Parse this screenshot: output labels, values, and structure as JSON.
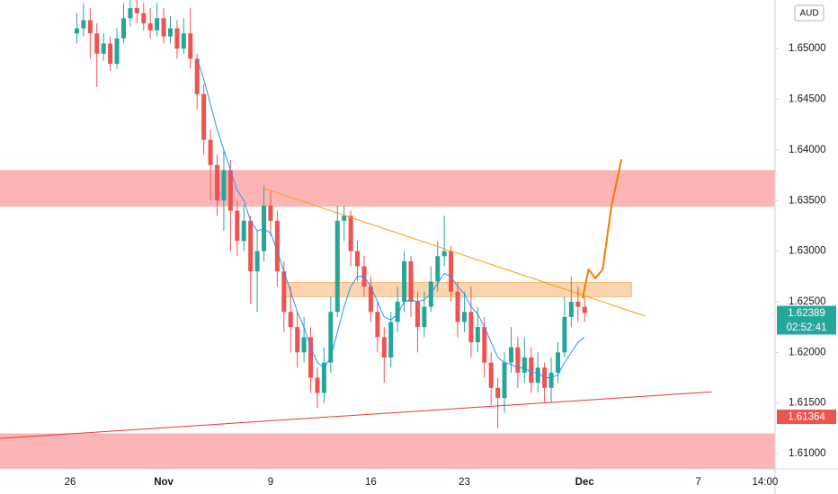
{
  "chart_data": {
    "type": "candlestick",
    "currency": "AUD",
    "categories": [
      null,
      null,
      null,
      null,
      null,
      null,
      null,
      null,
      null,
      null,
      "26",
      null,
      null,
      null,
      null,
      null,
      null,
      null,
      null,
      null,
      null,
      null,
      null,
      null,
      "Nov",
      null,
      null,
      null,
      null,
      null,
      null,
      null,
      null,
      null,
      null,
      null,
      null,
      null,
      null,
      null,
      "9",
      null,
      null,
      null,
      null,
      null,
      null,
      null,
      null,
      null,
      null,
      null,
      null,
      null,
      null,
      "16",
      null,
      null,
      null,
      null,
      null,
      null,
      null,
      null,
      null,
      null,
      null,
      null,
      null,
      "23",
      null,
      null,
      null,
      null,
      null,
      null,
      null,
      null,
      null,
      null,
      null,
      null,
      null,
      null,
      null,
      null,
      null,
      "Dec",
      null,
      null,
      null,
      null,
      null,
      null,
      null,
      null,
      null,
      null,
      null,
      null,
      null,
      null,
      null,
      null,
      "7",
      null,
      null,
      null,
      null,
      null,
      null,
      null,
      null,
      null,
      "14:00",
      null
    ],
    "open": [
      null,
      null,
      null,
      null,
      null,
      null,
      null,
      null,
      null,
      null,
      null,
      1.6515,
      1.652,
      1.6528,
      1.6515,
      1.6495,
      1.6505,
      1.6485,
      1.651,
      1.653,
      1.654,
      1.6535,
      1.6525,
      1.6518,
      1.653,
      1.6512,
      1.652,
      1.65,
      1.6515,
      1.649,
      1.6455,
      1.641,
      1.6385,
      1.635,
      1.638,
      1.634,
      1.631,
      1.633,
      1.628,
      1.63,
      1.6345,
      1.633,
      1.628,
      1.624,
      1.6225,
      1.62,
      1.6215,
      1.6175,
      1.616,
      1.619,
      1.624,
      1.633,
      1.6335,
      1.63,
      1.6285,
      1.6265,
      1.624,
      1.6215,
      1.6195,
      1.623,
      1.625,
      1.629,
      1.625,
      1.6225,
      1.6245,
      1.627,
      1.6295,
      1.63,
      1.626,
      1.623,
      1.624,
      1.621,
      1.6225,
      1.619,
      1.6165,
      1.6155,
      1.619,
      1.6205,
      1.618,
      1.6195,
      1.617,
      1.6185,
      1.6165,
      1.618,
      1.62,
      1.6235,
      1.625,
      1.6245,
      null,
      null,
      null,
      null,
      null,
      null,
      null,
      null,
      null,
      null,
      null,
      null,
      null,
      null,
      null,
      null,
      null,
      null,
      null,
      null,
      null,
      null,
      null,
      null,
      null,
      null,
      null,
      null
    ],
    "high": [
      null,
      null,
      null,
      null,
      null,
      null,
      null,
      null,
      null,
      null,
      null,
      1.6535,
      1.6545,
      1.654,
      1.6525,
      1.6515,
      1.6512,
      1.652,
      1.6545,
      1.655,
      1.655,
      1.6545,
      1.654,
      1.6545,
      1.654,
      1.6532,
      1.6528,
      1.653,
      1.654,
      1.6495,
      1.6465,
      1.642,
      1.6395,
      1.64,
      1.639,
      1.635,
      1.6345,
      1.6335,
      1.632,
      1.6365,
      1.636,
      1.634,
      1.629,
      1.6265,
      1.624,
      1.6235,
      1.6225,
      1.6185,
      1.6205,
      1.6255,
      1.6345,
      1.6345,
      1.634,
      1.631,
      1.6295,
      1.6275,
      1.625,
      1.6225,
      1.624,
      1.6265,
      1.63,
      1.6295,
      1.626,
      1.626,
      1.6285,
      1.631,
      1.6335,
      1.6305,
      1.627,
      1.626,
      1.6265,
      1.6245,
      1.6235,
      1.62,
      1.6175,
      1.62,
      1.6225,
      1.6215,
      1.6215,
      1.6205,
      1.62,
      1.619,
      1.6195,
      1.621,
      1.6255,
      1.6275,
      1.6265,
      1.6255,
      null,
      null,
      null,
      null,
      null,
      null,
      null,
      null,
      null,
      null,
      null,
      null,
      null,
      null,
      null,
      null,
      null,
      null,
      null,
      null,
      null,
      null,
      null,
      null,
      null,
      null,
      null,
      null
    ],
    "low": [
      null,
      null,
      null,
      null,
      null,
      null,
      null,
      null,
      null,
      null,
      null,
      1.6505,
      1.6512,
      1.649,
      1.6462,
      1.6488,
      1.6478,
      1.648,
      1.6505,
      1.6522,
      1.6525,
      1.6518,
      1.651,
      1.6512,
      1.6505,
      1.6505,
      1.649,
      1.6495,
      1.648,
      1.644,
      1.6395,
      1.635,
      1.6335,
      1.632,
      1.63,
      1.6295,
      1.63,
      1.6248,
      1.624,
      1.629,
      1.6315,
      1.6265,
      1.622,
      1.62,
      1.6185,
      1.619,
      1.616,
      1.6145,
      1.615,
      1.618,
      1.6235,
      1.631,
      1.6285,
      1.627,
      1.6255,
      1.623,
      1.62,
      1.617,
      1.6185,
      1.622,
      1.624,
      1.6235,
      1.62,
      1.6215,
      1.624,
      1.626,
      1.6285,
      1.625,
      1.6215,
      1.622,
      1.6195,
      1.62,
      1.6175,
      1.6148,
      1.6125,
      1.614,
      1.618,
      1.6165,
      1.617,
      1.616,
      1.616,
      1.615,
      1.615,
      1.617,
      1.6195,
      1.6225,
      1.623,
      1.623,
      null,
      null,
      null,
      null,
      null,
      null,
      null,
      null,
      null,
      null,
      null,
      null,
      null,
      null,
      null,
      null,
      null,
      null,
      null,
      null,
      null,
      null,
      null,
      null,
      null,
      null,
      null,
      null
    ],
    "close": [
      null,
      null,
      null,
      null,
      null,
      null,
      null,
      null,
      null,
      null,
      null,
      1.652,
      1.6528,
      1.6515,
      1.6495,
      1.6505,
      1.6485,
      1.651,
      1.653,
      1.654,
      1.6535,
      1.6525,
      1.6518,
      1.653,
      1.6512,
      1.652,
      1.65,
      1.6515,
      1.649,
      1.6455,
      1.641,
      1.6385,
      1.635,
      1.638,
      1.634,
      1.631,
      1.633,
      1.628,
      1.63,
      1.6345,
      1.633,
      1.628,
      1.624,
      1.6225,
      1.62,
      1.6215,
      1.6175,
      1.616,
      1.619,
      1.624,
      1.633,
      1.6335,
      1.63,
      1.6285,
      1.6265,
      1.624,
      1.6215,
      1.6195,
      1.623,
      1.625,
      1.629,
      1.625,
      1.6225,
      1.6245,
      1.627,
      1.6295,
      1.63,
      1.626,
      1.623,
      1.624,
      1.621,
      1.6225,
      1.619,
      1.6165,
      1.6155,
      1.619,
      1.6205,
      1.618,
      1.6195,
      1.617,
      1.6185,
      1.6165,
      1.618,
      1.62,
      1.6235,
      1.625,
      1.6245,
      1.62389,
      null,
      null,
      null,
      null,
      null,
      null,
      null,
      null,
      null,
      null,
      null,
      null,
      null,
      null,
      null,
      null,
      null,
      null,
      null,
      null,
      null,
      null,
      null,
      null,
      null,
      null,
      null,
      null
    ],
    "up_color": "#26a69a",
    "down_color": "#ef5350",
    "ma": {
      "color": "#2196f3",
      "values": [
        null,
        null,
        null,
        null,
        null,
        null,
        null,
        null,
        null,
        null,
        null,
        null,
        null,
        null,
        null,
        null,
        null,
        null,
        null,
        null,
        null,
        null,
        null,
        null,
        null,
        null,
        null,
        null,
        null,
        1.649,
        1.647,
        1.6445,
        1.642,
        1.64,
        1.638,
        1.636,
        1.635,
        1.633,
        1.632,
        1.6322,
        1.6318,
        1.63,
        1.628,
        1.626,
        1.624,
        1.6225,
        1.6205,
        1.619,
        1.6185,
        1.6195,
        1.622,
        1.6245,
        1.6265,
        1.6275,
        1.6275,
        1.6265,
        1.625,
        1.6235,
        1.6232,
        1.6238,
        1.625,
        1.6252,
        1.625,
        1.6252,
        1.6258,
        1.6268,
        1.6278,
        1.6275,
        1.6265,
        1.6258,
        1.6245,
        1.6238,
        1.6225,
        1.621,
        1.6195,
        1.619,
        1.6188,
        1.6185,
        1.6185,
        1.618,
        1.618,
        1.6175,
        1.6175,
        1.6178,
        1.619,
        1.62,
        1.621,
        1.6215,
        null,
        null,
        null,
        null,
        null,
        null,
        null,
        null,
        null,
        null,
        null,
        null,
        null,
        null,
        null,
        null,
        null,
        null,
        null,
        null,
        null,
        null,
        null,
        null,
        null,
        null,
        null,
        null
      ]
    },
    "zones": [
      {
        "top": 1.638,
        "bottom": 1.6344,
        "color": "#fdb4b7"
      },
      {
        "top": 1.612,
        "bottom": 1.6085,
        "color": "#fdb4b7"
      }
    ],
    "boxes": [
      {
        "x": [
          42,
          94
        ],
        "top": 1.6269,
        "bottom": 1.6255,
        "color": "#fbd5b0",
        "border": "#f6b87a"
      }
    ],
    "lines": [
      {
        "x": [
          39,
          96
        ],
        "y": [
          1.6362,
          1.6236
        ],
        "color": "#ff9800"
      },
      {
        "x": [
          -0.5,
          106
        ],
        "y": [
          1.6115,
          1.6161
        ],
        "color": "#e53935"
      }
    ],
    "projection": {
      "x": [
        86.7,
        87.6,
        88.6,
        89.7,
        91.0,
        92.5
      ],
      "y": [
        1.6254,
        1.6282,
        1.6273,
        1.6282,
        1.6344,
        1.639
      ],
      "color": "#f57c00"
    },
    "ylim": [
      1.6085,
      1.6548
    ],
    "yticks": [
      {
        "value": 1.61,
        "label": "1.61000"
      },
      {
        "value": 1.615,
        "label": "1.61500"
      },
      {
        "value": 1.62,
        "label": "1.62000"
      },
      {
        "value": 1.625,
        "label": "1.62500"
      },
      {
        "value": 1.63,
        "label": "1.63000"
      },
      {
        "value": 1.635,
        "label": "1.63500"
      },
      {
        "value": 1.64,
        "label": "1.64000"
      },
      {
        "value": 1.645,
        "label": "1.64500"
      },
      {
        "value": 1.65,
        "label": "1.65000"
      }
    ],
    "grid": false,
    "last_price": 1.62389,
    "countdown": "02:52:41",
    "line_price": 1.61364
  }
}
